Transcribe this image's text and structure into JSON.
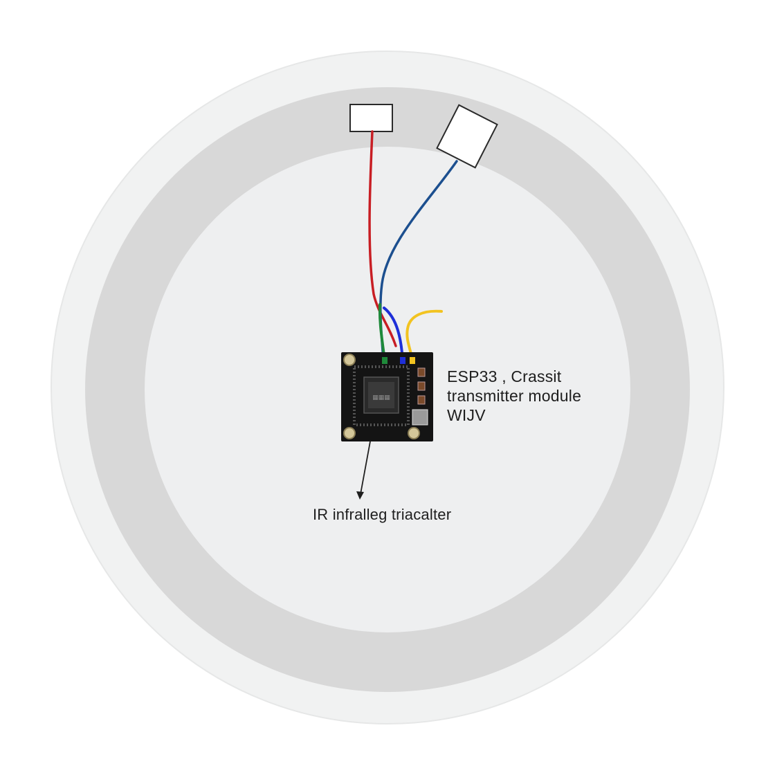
{
  "diagram": {
    "module_label_lines": [
      "ESP33 , Crassit",
      "transmitter module",
      "WIJV"
    ],
    "ir_label": "IR infralleg triacalter"
  },
  "colors": {
    "outer_disc": "#f1f2f2",
    "ring": "#d7d7d7",
    "inner_disc": "#efeff0",
    "wire_red": "#c81e24",
    "wire_blue": "#1c4f8f",
    "wire_green": "#1f8a3a",
    "wire_bright_blue": "#1e2fd8",
    "wire_yellow": "#f2c320",
    "board": "#141414",
    "chip": "#3a3a3a"
  }
}
